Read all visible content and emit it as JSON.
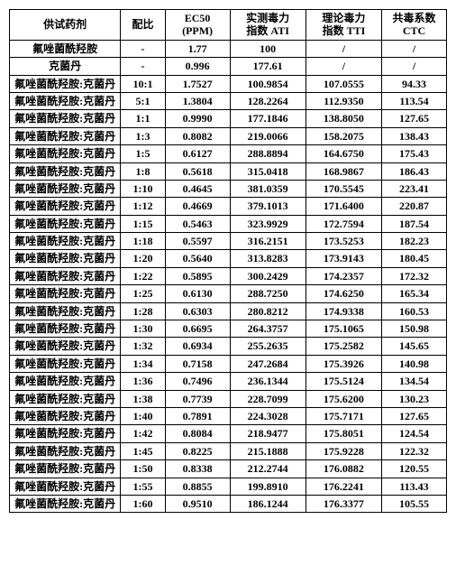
{
  "headers": {
    "drug": "供试药剂",
    "ratio": "配比",
    "ec50_l1": "EC50",
    "ec50_l2": "(PPM)",
    "ati_l1": "实测毒力",
    "ati_l2": "指数 ATI",
    "tti_l1": "理论毒力",
    "tti_l2": "指数 TTI",
    "ctc_l1": "共毒系数",
    "ctc_l2": "CTC"
  },
  "base_rows": [
    {
      "drug": "氟唑菌酰羟胺",
      "ratio": "-",
      "ec50": "1.77",
      "ati": "100",
      "tti": "/",
      "ctc": "/"
    },
    {
      "drug": "克菌丹",
      "ratio": "-",
      "ec50": "0.996",
      "ati": "177.61",
      "tti": "/",
      "ctc": "/"
    }
  ],
  "mix_name": "氟唑菌酰羟胺:克菌丹",
  "mix_rows": [
    {
      "ratio": "10:1",
      "ec50": "1.7527",
      "ati": "100.9854",
      "tti": "107.0555",
      "ctc": "94.33"
    },
    {
      "ratio": "5:1",
      "ec50": "1.3804",
      "ati": "128.2264",
      "tti": "112.9350",
      "ctc": "113.54"
    },
    {
      "ratio": "1:1",
      "ec50": "0.9990",
      "ati": "177.1846",
      "tti": "138.8050",
      "ctc": "127.65"
    },
    {
      "ratio": "1:3",
      "ec50": "0.8082",
      "ati": "219.0066",
      "tti": "158.2075",
      "ctc": "138.43"
    },
    {
      "ratio": "1:5",
      "ec50": "0.6127",
      "ati": "288.8894",
      "tti": "164.6750",
      "ctc": "175.43"
    },
    {
      "ratio": "1:8",
      "ec50": "0.5618",
      "ati": "315.0418",
      "tti": "168.9867",
      "ctc": "186.43"
    },
    {
      "ratio": "1:10",
      "ec50": "0.4645",
      "ati": "381.0359",
      "tti": "170.5545",
      "ctc": "223.41"
    },
    {
      "ratio": "1:12",
      "ec50": "0.4669",
      "ati": "379.1013",
      "tti": "171.6400",
      "ctc": "220.87"
    },
    {
      "ratio": "1:15",
      "ec50": "0.5463",
      "ati": "323.9929",
      "tti": "172.7594",
      "ctc": "187.54"
    },
    {
      "ratio": "1:18",
      "ec50": "0.5597",
      "ati": "316.2151",
      "tti": "173.5253",
      "ctc": "182.23"
    },
    {
      "ratio": "1:20",
      "ec50": "0.5640",
      "ati": "313.8283",
      "tti": "173.9143",
      "ctc": "180.45"
    },
    {
      "ratio": "1:22",
      "ec50": "0.5895",
      "ati": "300.2429",
      "tti": "174.2357",
      "ctc": "172.32"
    },
    {
      "ratio": "1:25",
      "ec50": "0.6130",
      "ati": "288.7250",
      "tti": "174.6250",
      "ctc": "165.34"
    },
    {
      "ratio": "1:28",
      "ec50": "0.6303",
      "ati": "280.8212",
      "tti": "174.9338",
      "ctc": "160.53"
    },
    {
      "ratio": "1:30",
      "ec50": "0.6695",
      "ati": "264.3757",
      "tti": "175.1065",
      "ctc": "150.98"
    },
    {
      "ratio": "1:32",
      "ec50": "0.6934",
      "ati": "255.2635",
      "tti": "175.2582",
      "ctc": "145.65"
    },
    {
      "ratio": "1:34",
      "ec50": "0.7158",
      "ati": "247.2684",
      "tti": "175.3926",
      "ctc": "140.98"
    },
    {
      "ratio": "1:36",
      "ec50": "0.7496",
      "ati": "236.1344",
      "tti": "175.5124",
      "ctc": "134.54"
    },
    {
      "ratio": "1:38",
      "ec50": "0.7739",
      "ati": "228.7099",
      "tti": "175.6200",
      "ctc": "130.23"
    },
    {
      "ratio": "1:40",
      "ec50": "0.7891",
      "ati": "224.3028",
      "tti": "175.7171",
      "ctc": "127.65"
    },
    {
      "ratio": "1:42",
      "ec50": "0.8084",
      "ati": "218.9477",
      "tti": "175.8051",
      "ctc": "124.54"
    },
    {
      "ratio": "1:45",
      "ec50": "0.8225",
      "ati": "215.1888",
      "tti": "175.9228",
      "ctc": "122.32"
    },
    {
      "ratio": "1:50",
      "ec50": "0.8338",
      "ati": "212.2744",
      "tti": "176.0882",
      "ctc": "120.55"
    },
    {
      "ratio": "1:55",
      "ec50": "0.8855",
      "ati": "199.8910",
      "tti": "176.2241",
      "ctc": "113.43"
    },
    {
      "ratio": "1:60",
      "ec50": "0.9510",
      "ati": "186.1244",
      "tti": "176.3377",
      "ctc": "105.55"
    }
  ]
}
